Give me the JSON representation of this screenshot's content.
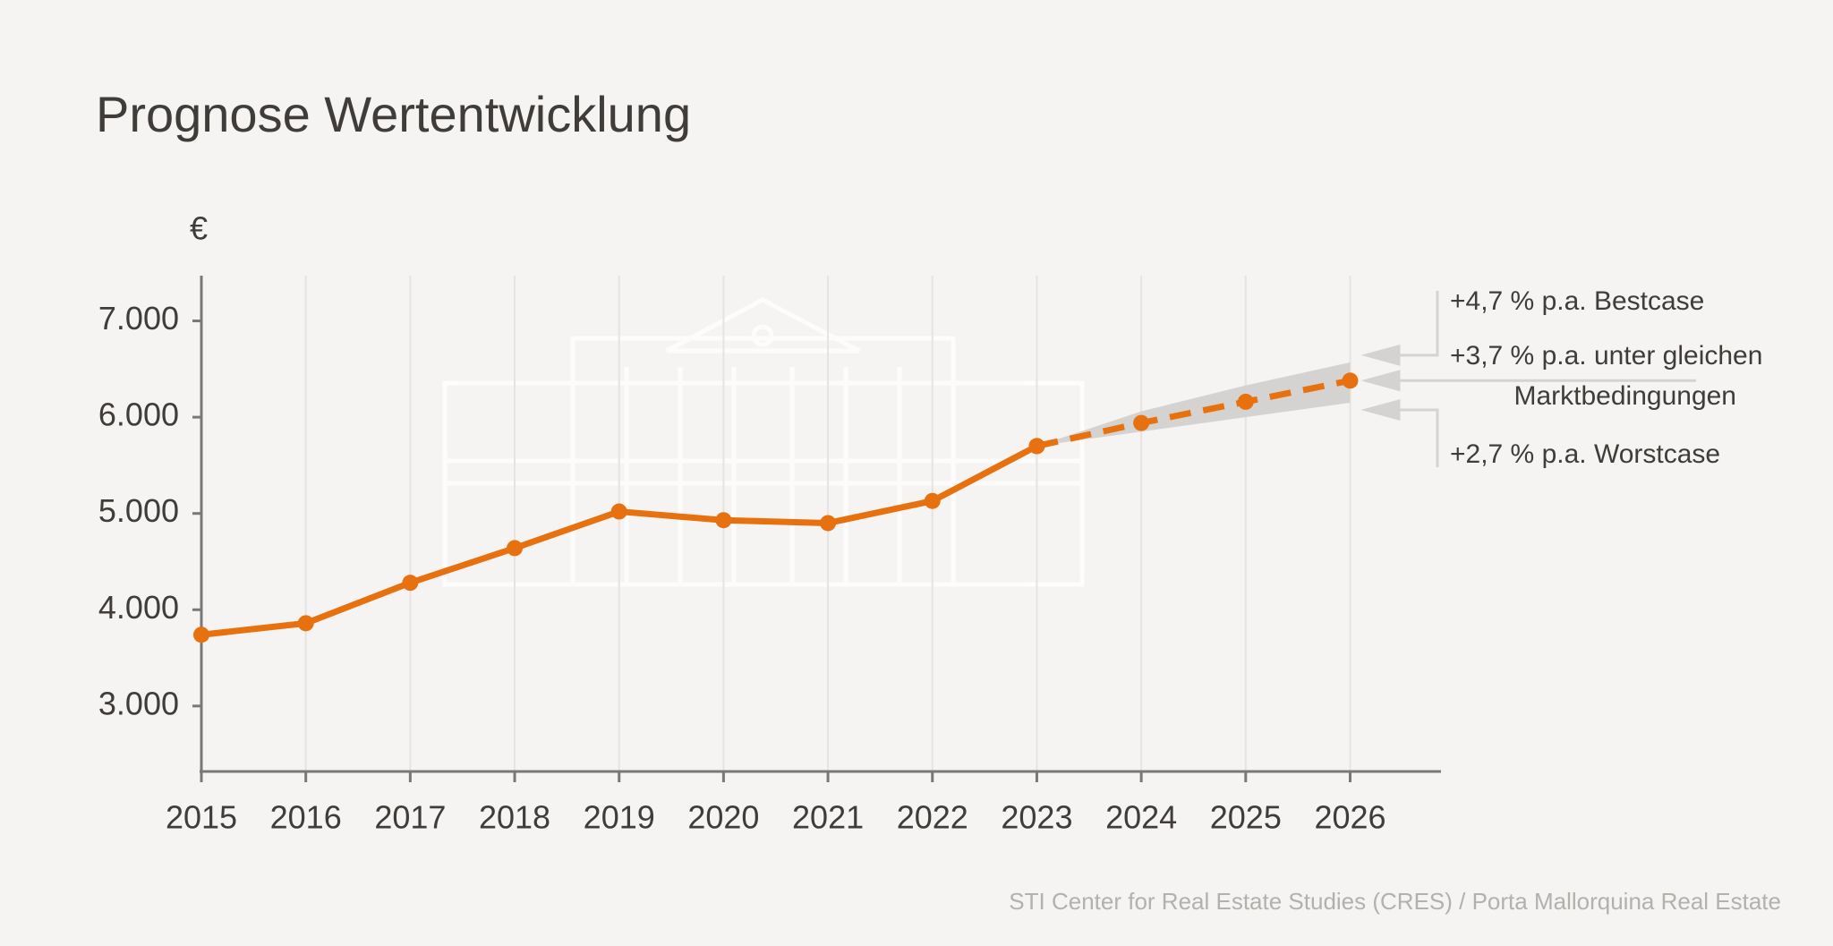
{
  "chart_data": {
    "type": "line",
    "title": "Prognose Wertentwicklung",
    "y_unit": "€",
    "x": [
      2015,
      2016,
      2017,
      2018,
      2019,
      2020,
      2021,
      2022,
      2023,
      2024,
      2025,
      2026
    ],
    "xlim": [
      2015,
      2026.87
    ],
    "xticks": [
      2015,
      2016,
      2017,
      2018,
      2019,
      2020,
      2021,
      2022,
      2023,
      2024,
      2025,
      2026
    ],
    "ylim": [
      2320,
      7470
    ],
    "yticks": [
      {
        "value": 3000,
        "label": "3.000"
      },
      {
        "value": 4000,
        "label": "4.000"
      },
      {
        "value": 5000,
        "label": "5.000"
      },
      {
        "value": 6000,
        "label": "6.000"
      },
      {
        "value": 7000,
        "label": "7.000"
      }
    ],
    "grid": true,
    "series": [
      {
        "color": "#e8710f",
        "dashed": false,
        "values": [
          3740,
          3860,
          4280,
          4640,
          5020,
          4930,
          4900,
          5130,
          5700,
          null,
          null,
          null
        ]
      },
      {
        "color": "#e8710f",
        "dashed": true,
        "values": [
          null,
          null,
          null,
          null,
          null,
          null,
          null,
          null,
          5700,
          5940,
          6160,
          6380
        ]
      }
    ],
    "band": {
      "color": "#d5d3d1",
      "upper": [
        null,
        null,
        null,
        null,
        null,
        null,
        null,
        null,
        5700,
        6060,
        6330,
        6570
      ],
      "lower": [
        null,
        null,
        null,
        null,
        null,
        null,
        null,
        null,
        5700,
        5850,
        6000,
        6150
      ]
    },
    "annotations": [
      "+4,7 % p.a. Bestcase",
      "+3,7 % p.a. unter gleichen",
      "Marktbedingungen",
      "+2,7 % p.a. Worstcase"
    ],
    "source": "STI Center for Real Estate Studies (CRES) / Porta Mallorquina Real Estate"
  }
}
